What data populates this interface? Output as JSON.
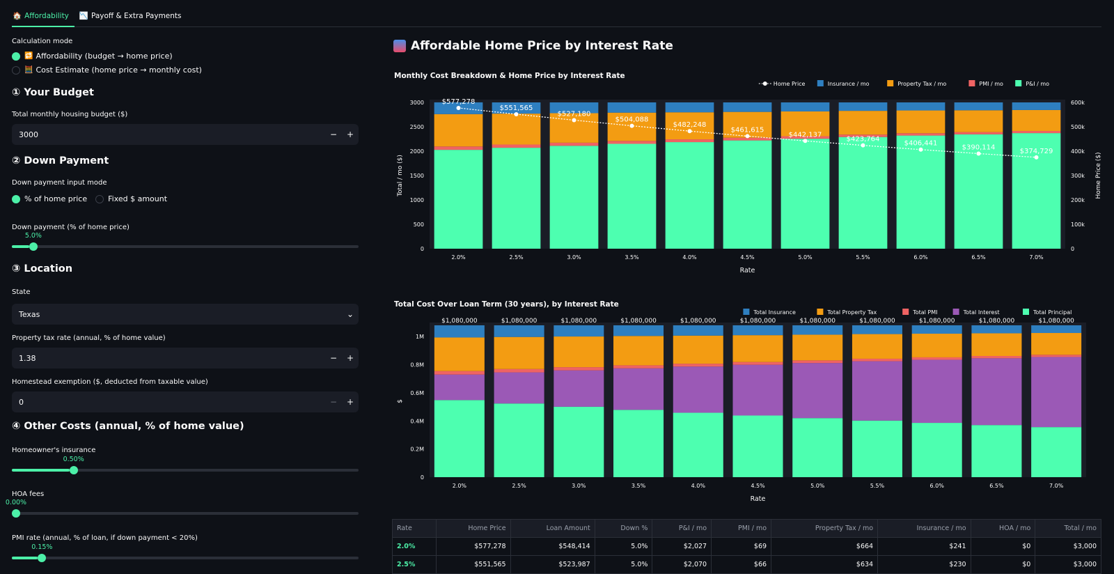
{
  "tabs": [
    {
      "label": "Affordability",
      "icon": "🏠",
      "active": true
    },
    {
      "label": "Payoff & Extra Payments",
      "icon": "📉",
      "active": false
    }
  ],
  "sidebar": {
    "calc_mode_label": "Calculation mode",
    "calc_modes": [
      {
        "label": "Affordability (budget → home price)",
        "icon": "🔁",
        "selected": true
      },
      {
        "label": "Cost Estimate (home price → monthly cost)",
        "icon": "🧮",
        "selected": false
      }
    ],
    "budget": {
      "heading": "① Your Budget",
      "field_label": "Total monthly housing budget ($)",
      "value": "3000"
    },
    "down": {
      "heading": "② Down Payment",
      "mode_label": "Down payment input mode",
      "modes": [
        {
          "label": "% of home price",
          "selected": true
        },
        {
          "label": "Fixed $ amount",
          "selected": false
        }
      ],
      "slider_label": "Down payment (% of home price)",
      "slider_value": "5.0%",
      "slider_fraction": 0.05
    },
    "location": {
      "heading": "③ Location",
      "state_label": "State",
      "state_value": "Texas",
      "tax_label": "Property tax rate (annual, % of home value)",
      "tax_value": "1.38",
      "homestead_label": "Homestead exemption ($, deducted from taxable value)",
      "homestead_value": "0"
    },
    "other": {
      "heading": "④ Other Costs (annual, % of home value)",
      "insurance_label": "Homeowner's insurance",
      "insurance_value": "0.50%",
      "insurance_fraction": 0.166,
      "hoa_label": "HOA fees",
      "hoa_value": "0.00%",
      "hoa_fraction": 0.0,
      "pmi_label": "PMI rate (annual, % of loan, if down payment < 20%)",
      "pmi_value": "0.15%",
      "pmi_fraction": 0.075
    }
  },
  "main_title": "Affordable Home Price by Interest Rate",
  "chart_data": [
    {
      "type": "bar",
      "title": "Monthly Cost Breakdown & Home Price by Interest Rate",
      "xlabel": "Rate",
      "ylabel": "Total / mo ($)",
      "y2label": "Home Price ($)",
      "categories": [
        "2.0%",
        "2.5%",
        "3.0%",
        "3.5%",
        "4.0%",
        "4.5%",
        "5.0%",
        "5.5%",
        "6.0%",
        "6.5%",
        "7.0%"
      ],
      "ylim": [
        0,
        3000
      ],
      "y2lim": [
        0,
        600000
      ],
      "yticks": [
        "0",
        "500",
        "1000",
        "1500",
        "2000",
        "2500",
        "3000"
      ],
      "y2ticks": [
        "0",
        "100k",
        "200k",
        "300k",
        "400k",
        "500k",
        "600k"
      ],
      "legend_position": "top-right",
      "legend": [
        "Home Price",
        "Insurance / mo",
        "Property Tax / mo",
        "PMI / mo",
        "P&I / mo"
      ],
      "series": [
        {
          "name": "P&I / mo",
          "color": "#4dffb0",
          "values": [
            2027,
            2070,
            2110,
            2150,
            2185,
            2220,
            2255,
            2290,
            2320,
            2345,
            2370
          ]
        },
        {
          "name": "PMI / mo",
          "color": "#ef6363",
          "values": [
            69,
            66,
            63,
            60,
            57,
            55,
            52,
            50,
            48,
            46,
            44
          ]
        },
        {
          "name": "Property Tax / mo",
          "color": "#f39c12",
          "values": [
            664,
            634,
            606,
            580,
            555,
            530,
            508,
            487,
            467,
            448,
            430
          ]
        },
        {
          "name": "Insurance / mo",
          "color": "#2e7fc0",
          "values": [
            241,
            230,
            221,
            210,
            203,
            195,
            185,
            173,
            165,
            161,
            156
          ]
        }
      ],
      "line": {
        "name": "Home Price",
        "values": [
          577278,
          551565,
          527180,
          504088,
          482248,
          461615,
          442137,
          423764,
          406441,
          390114,
          374729
        ],
        "labels": [
          "$577,278",
          "$551,565",
          "$527,180",
          "$504,088",
          "$482,248",
          "$461,615",
          "$442,137",
          "$423,764",
          "$406,441",
          "$390,114",
          "$374,729"
        ]
      }
    },
    {
      "type": "bar",
      "title": "Total Cost Over Loan Term (30 years), by Interest Rate",
      "xlabel": "Rate",
      "ylabel": "$",
      "categories": [
        "2.0%",
        "2.5%",
        "3.0%",
        "3.5%",
        "4.0%",
        "4.5%",
        "5.0%",
        "5.5%",
        "6.0%",
        "6.5%",
        "7.0%"
      ],
      "ylim": [
        0,
        1080000
      ],
      "yticks": [
        [
          "0",
          0
        ],
        [
          "0.2M",
          200000
        ],
        [
          "0.4M",
          400000
        ],
        [
          "0.6M",
          600000
        ],
        [
          "0.8M",
          800000
        ],
        [
          "1M",
          1000000
        ]
      ],
      "legend_position": "top-right",
      "legend": [
        "Total Insurance",
        "Total Property Tax",
        "Total PMI",
        "Total Interest",
        "Total Principal"
      ],
      "totals": [
        "$1,080,000",
        "$1,080,000",
        "$1,080,000",
        "$1,080,000",
        "$1,080,000",
        "$1,080,000",
        "$1,080,000",
        "$1,080,000",
        "$1,080,000",
        "$1,080,000",
        "$1,080,000"
      ],
      "series": [
        {
          "name": "Total Principal",
          "color": "#4dffb0",
          "values": [
            548414,
            523987,
            500821,
            478884,
            458136,
            438534,
            420030,
            402576,
            386119,
            370608,
            355993
          ]
        },
        {
          "name": "Total Interest",
          "color": "#9b59b6",
          "values": [
            181306,
            221213,
            258779,
            295116,
            328391,
            360751,
            391770,
            421830,
            448919,
            474811,
            498807
          ]
        },
        {
          "name": "Total PMI",
          "color": "#ef6363",
          "values": [
            24840,
            23760,
            22680,
            21600,
            20520,
            19800,
            18720,
            18000,
            17280,
            16560,
            15840
          ]
        },
        {
          "name": "Total Property Tax",
          "color": "#f39c12",
          "values": [
            239040,
            228240,
            218160,
            208800,
            199800,
            190800,
            182880,
            175320,
            168120,
            161280,
            154800
          ]
        },
        {
          "name": "Total Insurance",
          "color": "#2e7fc0",
          "values": [
            86400,
            82800,
            79560,
            75600,
            73153,
            70115,
            66600,
            62274,
            59562,
            56741,
            54560
          ]
        }
      ]
    }
  ],
  "table": {
    "headers": [
      "Rate",
      "Home Price",
      "Loan Amount",
      "Down %",
      "P&I / mo",
      "PMI / mo",
      "Property Tax / mo",
      "Insurance / mo",
      "HOA / mo",
      "Total / mo"
    ],
    "rows": [
      [
        "2.0%",
        "$577,278",
        "$548,414",
        "5.0%",
        "$2,027",
        "$69",
        "$664",
        "$241",
        "$0",
        "$3,000"
      ],
      [
        "2.5%",
        "$551,565",
        "$523,987",
        "5.0%",
        "$2,070",
        "$66",
        "$634",
        "$230",
        "$0",
        "$3,000"
      ]
    ]
  }
}
